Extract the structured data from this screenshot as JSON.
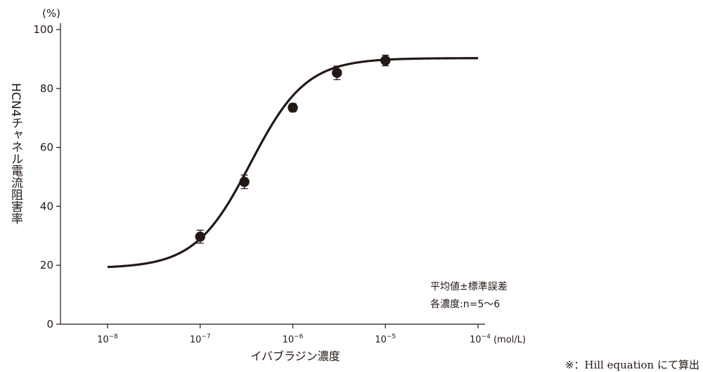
{
  "chart_data": {
    "type": "scatter",
    "title": "",
    "y_unit_label": "(%)",
    "ylabel": "HCN4チャネル電流阻害率",
    "xlabel": "イバブラジン濃度",
    "x_unit_label": "(mol/L)",
    "x_scale": "log",
    "ylim": [
      0,
      100
    ],
    "y_ticks": [
      0,
      20,
      40,
      60,
      80,
      100
    ],
    "x_ticks": [
      {
        "value": 1e-08,
        "base": "10",
        "exp": "−8"
      },
      {
        "value": 1e-07,
        "base": "10",
        "exp": "−7"
      },
      {
        "value": 1e-06,
        "base": "10",
        "exp": "−6"
      },
      {
        "value": 1e-05,
        "base": "10",
        "exp": "−5"
      },
      {
        "value": 0.0001,
        "base": "10",
        "exp": "−4"
      }
    ],
    "xlim": [
      1e-08,
      0.0001
    ],
    "points": [
      {
        "x": 1e-07,
        "y": 29.7,
        "err": 2.2
      },
      {
        "x": 3e-07,
        "y": 48.3,
        "err": 2.3
      },
      {
        "x": 1e-06,
        "y": 73.5,
        "err": 1.4
      },
      {
        "x": 3e-06,
        "y": 85.3,
        "err": 2.3
      },
      {
        "x": 1e-05,
        "y": 89.5,
        "err": 1.8
      }
    ],
    "fit": {
      "model": "Hill",
      "bottom": 19.0,
      "top": 90.3,
      "ec50": 3.5e-07,
      "hill": 1.45
    },
    "legend_note_lines": [
      "平均値±標準誤差",
      "各濃度:n=5〜6"
    ],
    "footnote": "※：Hill equation にて算出",
    "colors": {
      "ink": "#231815"
    }
  }
}
